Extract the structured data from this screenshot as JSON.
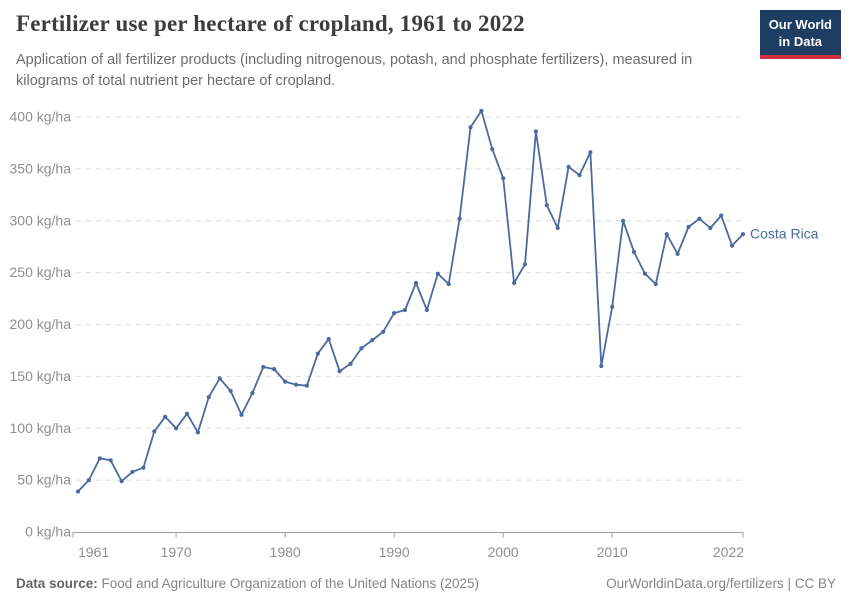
{
  "header": {
    "title": "Fertilizer use per hectare of cropland, 1961 to 2022",
    "subtitle": "Application of all fertilizer products (including nitrogenous, potash, and phosphate fertilizers), measured in kilograms of total nutrient per hectare of cropland.",
    "logo": {
      "line1": "Our World",
      "line2": "in Data"
    }
  },
  "chart_data": {
    "type": "line",
    "title": "Fertilizer use per hectare of cropland, 1961 to 2022",
    "xlabel": "",
    "ylabel": "kg/ha",
    "xlim": [
      1961,
      2022
    ],
    "ylim": [
      0,
      400
    ],
    "grid": "horizontal-dashed",
    "legend_position": "end-of-line-label",
    "x_ticks": [
      1961,
      1970,
      1980,
      1990,
      2000,
      2010,
      2022
    ],
    "x_tick_labels": [
      "1961",
      "1970",
      "1980",
      "1990",
      "2000",
      "2010",
      "2022"
    ],
    "y_ticks": [
      0,
      50,
      100,
      150,
      200,
      250,
      300,
      350,
      400
    ],
    "y_tick_labels": [
      "0 kg/ha",
      "50 kg/ha",
      "100 kg/ha",
      "150 kg/ha",
      "200 kg/ha",
      "250 kg/ha",
      "300 kg/ha",
      "350 kg/ha",
      "400 kg/ha"
    ],
    "series": [
      {
        "name": "Costa Rica",
        "color": "#4c6a9e",
        "x": [
          1961,
          1962,
          1963,
          1964,
          1965,
          1966,
          1967,
          1968,
          1969,
          1970,
          1971,
          1972,
          1973,
          1974,
          1975,
          1976,
          1977,
          1978,
          1979,
          1980,
          1981,
          1982,
          1983,
          1984,
          1985,
          1986,
          1987,
          1988,
          1989,
          1990,
          1991,
          1992,
          1993,
          1994,
          1995,
          1996,
          1997,
          1998,
          1999,
          2000,
          2001,
          2002,
          2003,
          2004,
          2005,
          2006,
          2007,
          2008,
          2009,
          2010,
          2011,
          2012,
          2013,
          2014,
          2015,
          2016,
          2017,
          2018,
          2019,
          2020,
          2021,
          2022
        ],
        "values": [
          39,
          50,
          71,
          69,
          49,
          58,
          62,
          97,
          111,
          100,
          114,
          96,
          130,
          148,
          136,
          113,
          134,
          159,
          157,
          145,
          142,
          141,
          172,
          186,
          155,
          162,
          177,
          185,
          193,
          211,
          214,
          240,
          214,
          249,
          239,
          302,
          390,
          406,
          369,
          341,
          240,
          258,
          386,
          315,
          293,
          352,
          344,
          366,
          160,
          217,
          300,
          270,
          249,
          239,
          287,
          268,
          294,
          302,
          293,
          305,
          276,
          287
        ]
      }
    ]
  },
  "colors": {
    "line": "#4c6a9e",
    "grid": "#dcdcdc",
    "axis": "#9e9e9e",
    "tick_label": "#8f8f8f",
    "logo_bg": "#1d3d63",
    "logo_accent": "#d03140"
  },
  "footer": {
    "datasource_label": "Data source:",
    "datasource_value": "Food and Agriculture Organization of the United Nations (2025)",
    "attribution": "OurWorldinData.org/fertilizers | CC BY"
  }
}
